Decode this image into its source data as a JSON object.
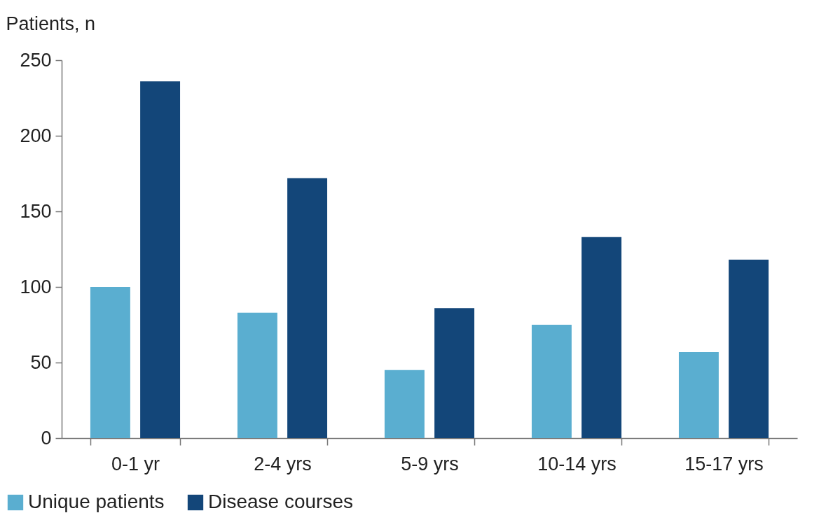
{
  "chart_data": {
    "type": "bar",
    "ylabel": "Patients, n",
    "categories": [
      "0-1 yr",
      "2-4 yrs",
      "5-9 yrs",
      "10-14 yrs",
      "15-17 yrs"
    ],
    "series": [
      {
        "name": "Unique patients",
        "color": "#5aaed0",
        "values": [
          100,
          83,
          45,
          75,
          57
        ]
      },
      {
        "name": "Disease courses",
        "color": "#134679",
        "values": [
          236,
          172,
          86,
          133,
          118
        ]
      }
    ],
    "ylim": [
      0,
      250
    ],
    "yticks": [
      0,
      50,
      100,
      150,
      200,
      250
    ],
    "grid": false,
    "legend": "bottom left"
  }
}
